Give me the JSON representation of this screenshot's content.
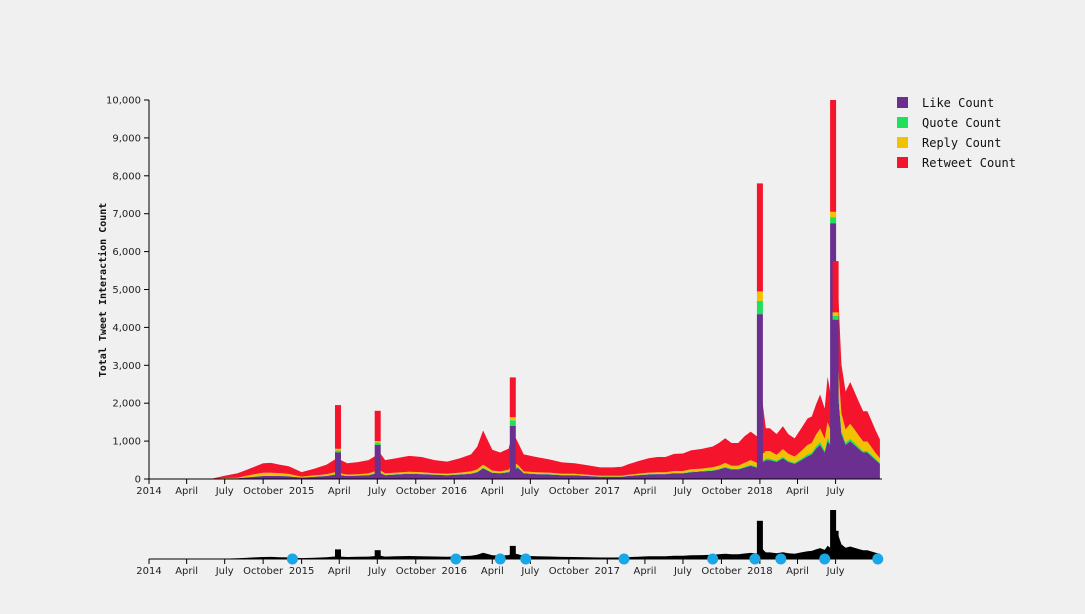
{
  "chart_data": {
    "type": "area",
    "stacked": true,
    "ylabel": "Total Tweet Interaction Count",
    "xlabel": "",
    "ylim": [
      0,
      10000
    ],
    "yticks": [
      0,
      1000,
      2000,
      3000,
      4000,
      5000,
      6000,
      7000,
      8000,
      9000,
      10000
    ],
    "ytick_labels": [
      "0",
      "1,000",
      "2,000",
      "3,000",
      "4,000",
      "5,000",
      "6,000",
      "7,000",
      "8,000",
      "9,000",
      "10,000"
    ],
    "xlim": [
      "2014-01-01",
      "2018-10-20"
    ],
    "xticks": [
      "2014-01-01",
      "2014-04-01",
      "2014-07-01",
      "2014-10-01",
      "2015-01-01",
      "2015-04-01",
      "2015-07-01",
      "2015-10-01",
      "2016-01-01",
      "2016-04-01",
      "2016-07-01",
      "2016-10-01",
      "2017-01-01",
      "2017-04-01",
      "2017-07-01",
      "2017-10-01",
      "2018-01-01",
      "2018-04-01",
      "2018-07-01"
    ],
    "xtick_labels": [
      "2014",
      "April",
      "July",
      "October",
      "2015",
      "April",
      "July",
      "October",
      "2016",
      "April",
      "July",
      "October",
      "2017",
      "April",
      "July",
      "October",
      "2018",
      "April",
      "July"
    ],
    "legend": {
      "placement": "top-right"
    },
    "grid": false,
    "series": [
      {
        "name": "Like Count",
        "color": "#6b2f8f"
      },
      {
        "name": "Quote Count",
        "color": "#1ee05a"
      },
      {
        "name": "Reply Count",
        "color": "#f2c200"
      },
      {
        "name": "Retweet Count",
        "color": "#f4152d"
      }
    ],
    "x": [
      "2014-01-01",
      "2014-02-01",
      "2014-03-01",
      "2014-04-01",
      "2014-05-01",
      "2014-06-01",
      "2014-07-01",
      "2014-08-01",
      "2014-08-20",
      "2014-09-10",
      "2014-10-01",
      "2014-10-20",
      "2014-11-10",
      "2014-12-01",
      "2014-12-10",
      "2015-01-01",
      "2015-02-01",
      "2015-03-01",
      "2015-03-25",
      "2015-03-29",
      "2015-04-05",
      "2015-04-20",
      "2015-05-15",
      "2015-06-10",
      "2015-06-25",
      "2015-07-02",
      "2015-07-20",
      "2015-08-15",
      "2015-09-15",
      "2015-10-15",
      "2015-11-15",
      "2015-12-15",
      "2016-01-15",
      "2016-02-10",
      "2016-02-25",
      "2016-03-10",
      "2016-04-01",
      "2016-04-20",
      "2016-05-10",
      "2016-05-20",
      "2016-06-01",
      "2016-06-15",
      "2016-07-15",
      "2016-08-15",
      "2016-09-15",
      "2016-10-15",
      "2016-11-15",
      "2016-12-15",
      "2017-01-15",
      "2017-02-05",
      "2017-02-20",
      "2017-03-15",
      "2017-04-10",
      "2017-05-01",
      "2017-05-20",
      "2017-06-10",
      "2017-07-01",
      "2017-07-20",
      "2017-08-15",
      "2017-09-10",
      "2017-09-25",
      "2017-10-10",
      "2017-10-25",
      "2017-11-10",
      "2017-11-25",
      "2017-12-10",
      "2017-12-25",
      "2018-01-01",
      "2018-01-15",
      "2018-01-25",
      "2018-02-10",
      "2018-02-25",
      "2018-03-10",
      "2018-03-25",
      "2018-04-10",
      "2018-04-25",
      "2018-05-05",
      "2018-05-15",
      "2018-05-25",
      "2018-06-05",
      "2018-06-12",
      "2018-06-18",
      "2018-06-25",
      "2018-07-01",
      "2018-07-08",
      "2018-07-15",
      "2018-07-25",
      "2018-08-05",
      "2018-08-15",
      "2018-08-25",
      "2018-09-05",
      "2018-09-15",
      "2018-09-25",
      "2018-10-05",
      "2018-10-15"
    ],
    "values": {
      "Like Count": [
        0,
        0,
        0,
        0,
        0,
        0,
        20,
        20,
        40,
        60,
        80,
        80,
        80,
        70,
        60,
        40,
        60,
        80,
        120,
        200,
        100,
        80,
        90,
        100,
        140,
        180,
        100,
        120,
        140,
        130,
        110,
        100,
        120,
        140,
        180,
        280,
        160,
        150,
        180,
        200,
        300,
        150,
        130,
        120,
        100,
        100,
        80,
        60,
        60,
        60,
        80,
        100,
        120,
        130,
        130,
        150,
        150,
        180,
        200,
        220,
        250,
        300,
        250,
        250,
        300,
        350,
        300,
        400,
        500,
        500,
        450,
        550,
        450,
        400,
        500,
        600,
        650,
        800,
        900,
        700,
        1000,
        900,
        700,
        1200,
        2100,
        1200,
        900,
        1000,
        900,
        800,
        700,
        700,
        600,
        500,
        400
      ],
      "Quote Count": [
        0,
        0,
        0,
        0,
        0,
        0,
        2,
        2,
        3,
        4,
        5,
        5,
        5,
        5,
        4,
        3,
        4,
        5,
        8,
        80,
        8,
        6,
        6,
        8,
        10,
        40,
        8,
        10,
        10,
        10,
        10,
        8,
        8,
        10,
        12,
        20,
        12,
        10,
        12,
        150,
        15,
        10,
        10,
        8,
        8,
        8,
        6,
        5,
        5,
        5,
        6,
        8,
        10,
        10,
        10,
        12,
        12,
        15,
        15,
        18,
        20,
        25,
        20,
        20,
        25,
        30,
        25,
        35,
        40,
        40,
        35,
        40,
        35,
        30,
        40,
        50,
        50,
        60,
        80,
        60,
        100,
        60,
        50,
        120,
        150,
        80,
        60,
        60,
        60,
        50,
        40,
        40,
        40,
        30,
        25
      ],
      "Reply Count": [
        0,
        0,
        0,
        0,
        0,
        0,
        5,
        10,
        40,
        60,
        80,
        80,
        70,
        60,
        50,
        20,
        30,
        40,
        60,
        60,
        40,
        30,
        30,
        40,
        50,
        50,
        40,
        40,
        40,
        40,
        30,
        30,
        40,
        50,
        60,
        80,
        50,
        40,
        50,
        80,
        60,
        40,
        40,
        40,
        30,
        30,
        25,
        20,
        20,
        20,
        25,
        30,
        40,
        40,
        40,
        50,
        50,
        60,
        60,
        70,
        80,
        100,
        80,
        80,
        100,
        120,
        100,
        150,
        200,
        200,
        150,
        200,
        180,
        160,
        200,
        250,
        250,
        300,
        350,
        300,
        400,
        350,
        300,
        500,
        600,
        450,
        350,
        400,
        350,
        300,
        250,
        250,
        200,
        150,
        120
      ],
      "Retweet Count": [
        10,
        10,
        10,
        10,
        10,
        10,
        60,
        120,
        150,
        200,
        250,
        260,
        220,
        200,
        180,
        120,
        180,
        250,
        350,
        1100,
        350,
        300,
        320,
        350,
        400,
        500,
        350,
        380,
        420,
        400,
        350,
        320,
        380,
        450,
        600,
        900,
        550,
        500,
        560,
        800,
        600,
        450,
        400,
        350,
        300,
        280,
        250,
        220,
        220,
        240,
        280,
        330,
        380,
        400,
        400,
        450,
        460,
        500,
        520,
        550,
        600,
        650,
        600,
        600,
        700,
        750,
        700,
        2000,
        600,
        600,
        550,
        600,
        520,
        480,
        600,
        700,
        700,
        800,
        900,
        800,
        1200,
        1000,
        900,
        1400,
        1900,
        1300,
        1000,
        1100,
        1000,
        900,
        800,
        800,
        700,
        600,
        500
      ]
    },
    "spikes": [
      {
        "x": "2015-03-29",
        "Like Count": 700,
        "Quote Count": 50,
        "Reply Count": 50,
        "Retweet Count": 1150
      },
      {
        "x": "2015-07-02",
        "Like Count": 900,
        "Quote Count": 60,
        "Reply Count": 40,
        "Retweet Count": 800
      },
      {
        "x": "2016-05-20",
        "Like Count": 1400,
        "Quote Count": 150,
        "Reply Count": 80,
        "Retweet Count": 1050
      },
      {
        "x": "2018-01-01",
        "Like Count": 4350,
        "Quote Count": 350,
        "Reply Count": 250,
        "Retweet Count": 2850
      },
      {
        "x": "2018-06-25",
        "Like Count": 6750,
        "Quote Count": 150,
        "Reply Count": 150,
        "Retweet Count": 2950
      },
      {
        "x": "2018-07-01",
        "Like Count": 4200,
        "Quote Count": 100,
        "Reply Count": 100,
        "Retweet Count": 1350
      }
    ],
    "brush_handles": [
      "2014-12-10",
      "2016-01-05",
      "2016-04-20",
      "2016-06-20",
      "2017-02-10",
      "2017-09-10",
      "2017-12-20",
      "2018-02-20",
      "2018-06-05",
      "2018-10-10"
    ],
    "brush_color": "#1aa7e6",
    "context_axis_ticks": [
      "2014",
      "April",
      "July",
      "October",
      "2015",
      "April",
      "July",
      "October",
      "2016",
      "April",
      "July",
      "October",
      "2017",
      "April",
      "July",
      "October",
      "2018",
      "April",
      "July"
    ]
  }
}
